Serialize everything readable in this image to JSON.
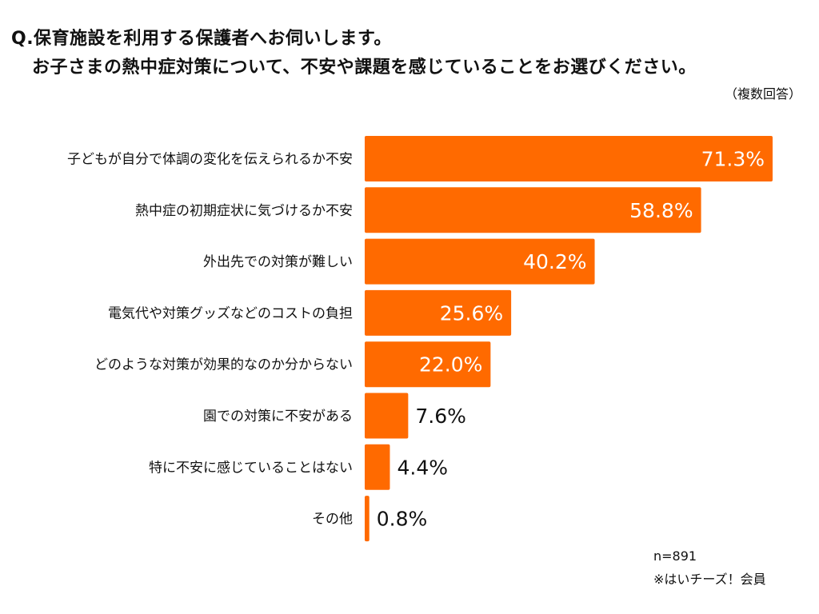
{
  "chart_data": {
    "type": "bar",
    "orientation": "horizontal",
    "title_lines": [
      "Q.保育施設を利用する保護者へお伺いします。",
      "お子さまの熱中症対策について、不安や課題を感じていることをお選びください。"
    ],
    "note": "（複数回答）",
    "categories": [
      "子どもが自分で体調の変化を伝えられるか不安",
      "熱中症の初期症状に気づけるか不安",
      "外出先での対策が難しい",
      "電気代や対策グッズなどのコストの負担",
      "どのような対策が効果的なのか分からない",
      "園での対策に不安がある",
      "特に不安に感じていることはない",
      "その他"
    ],
    "values": [
      71.3,
      58.8,
      40.2,
      25.6,
      22.0,
      7.6,
      4.4,
      0.8
    ],
    "value_labels": [
      "71.3%",
      "58.8%",
      "40.2%",
      "25.6%",
      "22.0%",
      "7.6%",
      "4.4%",
      "0.8%"
    ],
    "unit": "%",
    "xlim": [
      0,
      71.3
    ],
    "axis_visible": false,
    "grid": false,
    "legend": "none",
    "bar_color": "#FF6A00",
    "inside_label_color": "#ffffff",
    "outside_label_color": "#111111"
  },
  "footer": {
    "sample_size": "n=891",
    "source": "※はいチーズ！会員"
  }
}
